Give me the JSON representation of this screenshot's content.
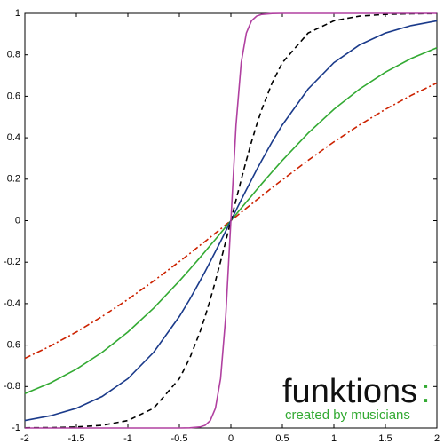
{
  "chart_data": {
    "type": "line",
    "x": [
      -2,
      -1.75,
      -1.5,
      -1.25,
      -1,
      -0.75,
      -0.5,
      -0.4,
      -0.3,
      -0.25,
      -0.2,
      -0.15,
      -0.1,
      -0.05,
      0,
      0.05,
      0.1,
      0.15,
      0.2,
      0.25,
      0.3,
      0.4,
      0.5,
      0.75,
      1,
      1.25,
      1.5,
      1.75,
      2
    ],
    "series": [
      {
        "color": "#cc2200",
        "dash": "7 3 2 3",
        "values": [
          -0.664,
          -0.604,
          -0.537,
          -0.462,
          -0.38,
          -0.291,
          -0.197,
          -0.159,
          -0.119,
          -0.1,
          -0.08,
          -0.06,
          -0.04,
          -0.02,
          0,
          0.02,
          0.04,
          0.06,
          0.08,
          0.1,
          0.119,
          0.159,
          0.197,
          0.291,
          0.38,
          0.462,
          0.537,
          0.604,
          0.664
        ]
      },
      {
        "color": "#33aa33",
        "values": [
          -0.834,
          -0.782,
          -0.716,
          -0.635,
          -0.537,
          -0.422,
          -0.291,
          -0.235,
          -0.178,
          -0.149,
          -0.119,
          -0.09,
          -0.06,
          -0.03,
          0,
          0.03,
          0.06,
          0.09,
          0.119,
          0.149,
          0.178,
          0.235,
          0.291,
          0.422,
          0.537,
          0.635,
          0.716,
          0.782,
          0.834
        ]
      },
      {
        "color": "#1a3a8a",
        "values": [
          -0.964,
          -0.941,
          -0.905,
          -0.848,
          -0.762,
          -0.635,
          -0.462,
          -0.38,
          -0.291,
          -0.245,
          -0.197,
          -0.149,
          -0.1,
          -0.05,
          0,
          0.05,
          0.1,
          0.149,
          0.197,
          0.245,
          0.291,
          0.38,
          0.462,
          0.635,
          0.762,
          0.848,
          0.905,
          0.941,
          0.964
        ]
      },
      {
        "color": "#000000",
        "dash": "6 4",
        "values": [
          -0.999,
          -0.998,
          -0.995,
          -0.987,
          -0.964,
          -0.905,
          -0.762,
          -0.664,
          -0.537,
          -0.462,
          -0.38,
          -0.291,
          -0.197,
          -0.1,
          0,
          0.1,
          0.197,
          0.291,
          0.38,
          0.462,
          0.537,
          0.664,
          0.762,
          0.905,
          0.964,
          0.987,
          0.995,
          0.998,
          0.999
        ]
      },
      {
        "color": "#b040a0",
        "values": [
          -1,
          -1,
          -1,
          -1,
          -1,
          -1,
          -1,
          -0.999,
          -0.995,
          -0.987,
          -0.964,
          -0.905,
          -0.762,
          -0.462,
          0,
          0.462,
          0.762,
          0.905,
          0.964,
          0.987,
          0.995,
          0.999,
          1,
          1,
          1,
          1,
          1,
          1,
          1
        ]
      }
    ],
    "xlim": [
      -2,
      2
    ],
    "xticks": [
      -2,
      -1.5,
      -1,
      -0.5,
      0,
      0.5,
      1,
      1.5,
      2
    ],
    "ylim": [
      -1,
      1
    ],
    "yticks": [
      -1,
      -0.8,
      -0.6,
      -0.4,
      -0.2,
      0,
      0.2,
      0.4,
      0.6,
      0.8,
      1
    ],
    "grid": false,
    "logo": {
      "name": "funktions",
      "mark": ":",
      "tagline": "created by musicians"
    }
  }
}
